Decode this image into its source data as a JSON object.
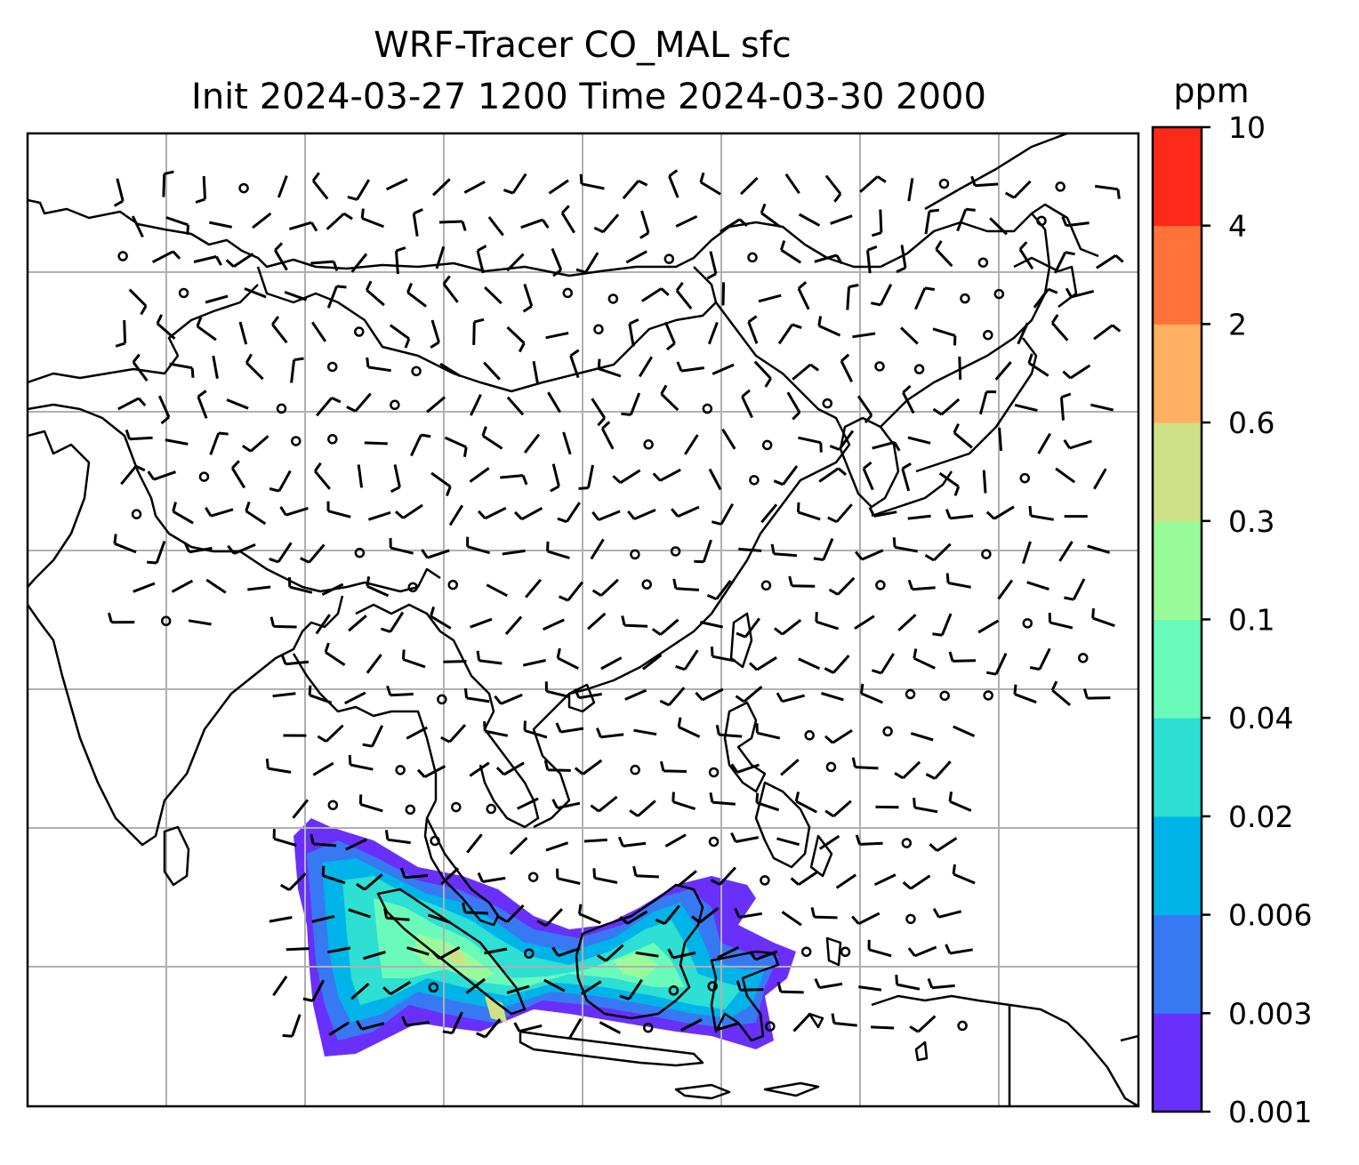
{
  "title": {
    "line1": "WRF-Tracer CO_MAL sfc",
    "line2": "Init 2024-03-27 1200 Time 2024-03-30 2000"
  },
  "colorbar": {
    "unit": "ppm",
    "ticks": [
      "0.001",
      "0.003",
      "0.006",
      "0.02",
      "0.04",
      "0.1",
      "0.3",
      "0.6",
      "2",
      "4",
      "10"
    ],
    "colors": [
      "#6930fb",
      "#3779f3",
      "#00b4e9",
      "#2edfd3",
      "#6afbbb",
      "#9afb9a",
      "#cfe187",
      "#ffb060",
      "#ff7239",
      "#ff291a"
    ]
  },
  "map": {
    "gridlines": true,
    "grid_color": "#b0b0b0",
    "coastline_color": "#000000"
  },
  "tracer_levels": [
    {
      "level": "0.001",
      "color": "#6930fb"
    },
    {
      "level": "0.003",
      "color": "#3779f3"
    },
    {
      "level": "0.006",
      "color": "#00b4e9"
    },
    {
      "level": "0.02",
      "color": "#2edfd3"
    },
    {
      "level": "0.04",
      "color": "#6afbbb"
    },
    {
      "level": "0.1",
      "color": "#9afb9a"
    },
    {
      "level": "0.3",
      "color": "#cfe187"
    }
  ]
}
